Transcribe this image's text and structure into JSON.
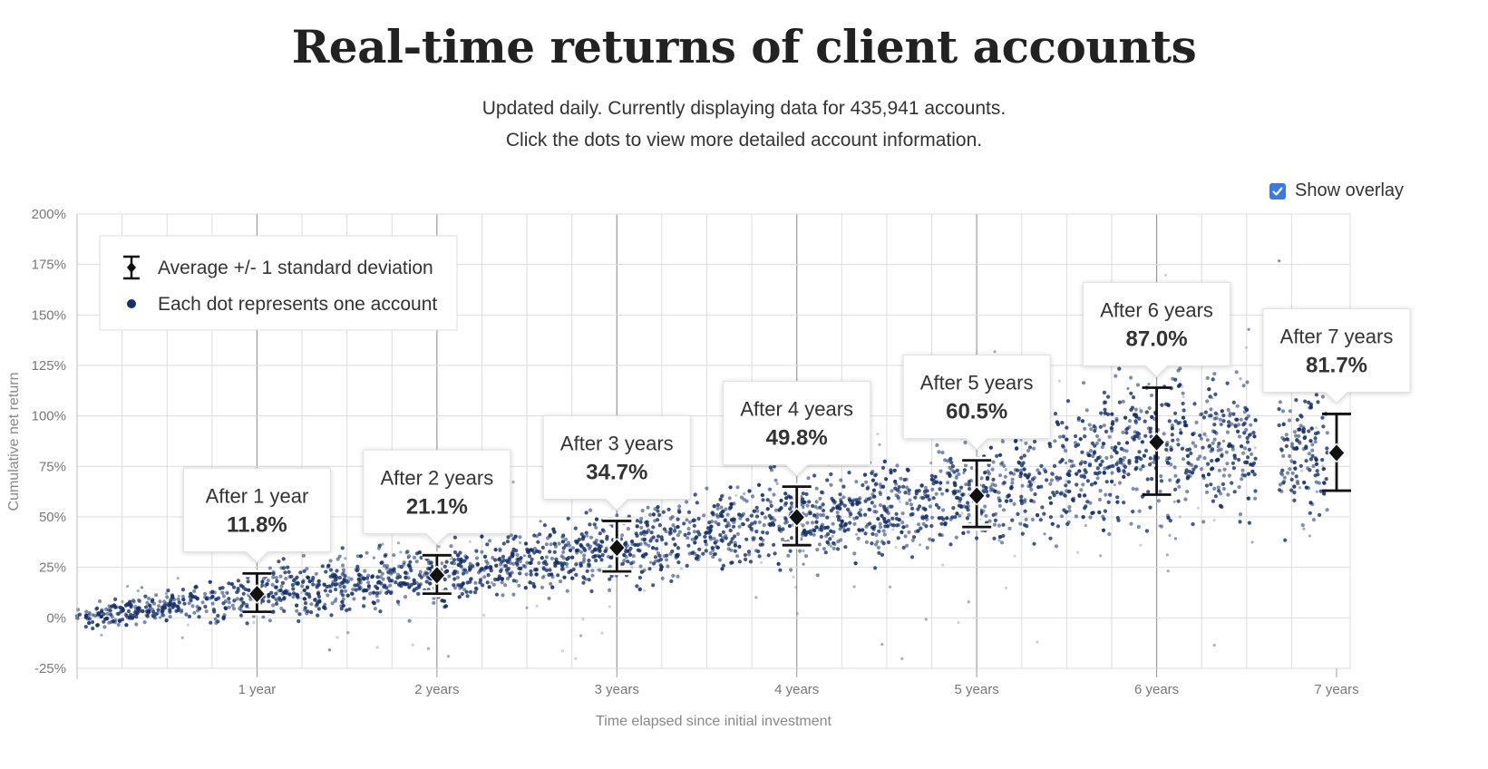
{
  "header": {
    "title": "Real-time returns of client accounts",
    "subtitle_line1": "Updated daily. Currently displaying data for 435,941 accounts.",
    "subtitle_line2": "Click the dots to view more detailed account information."
  },
  "overlay": {
    "label": "Show overlay",
    "checked": true,
    "color": "#3b7be0"
  },
  "legend": {
    "errorbar_label": "Average +/- 1 standard deviation",
    "dot_label": "Each dot represents one account"
  },
  "colors": {
    "dots": "#14306a",
    "marker": "#111111",
    "grid": "#dddddd",
    "grid_major": "#999999"
  },
  "chart_data": {
    "type": "scatter",
    "xlabel": "Time elapsed since initial investment",
    "ylabel": "Cumulative net return",
    "xlim": [
      0,
      7
    ],
    "ylim": [
      -25,
      200
    ],
    "x_ticks": [
      {
        "value": 1,
        "label": "1 year"
      },
      {
        "value": 2,
        "label": "2 years"
      },
      {
        "value": 3,
        "label": "3 years"
      },
      {
        "value": 4,
        "label": "4 years"
      },
      {
        "value": 5,
        "label": "5 years"
      },
      {
        "value": 6,
        "label": "6 years"
      },
      {
        "value": 7,
        "label": "7 years"
      }
    ],
    "y_ticks": [
      {
        "value": 200,
        "label": "200%"
      },
      {
        "value": 175,
        "label": "175%"
      },
      {
        "value": 150,
        "label": "150%"
      },
      {
        "value": 125,
        "label": "125%"
      },
      {
        "value": 100,
        "label": "100%"
      },
      {
        "value": 75,
        "label": "75%"
      },
      {
        "value": 50,
        "label": "50%"
      },
      {
        "value": 25,
        "label": "25%"
      },
      {
        "value": 0,
        "label": "0%"
      },
      {
        "value": -25,
        "label": "-25%"
      }
    ],
    "summary": [
      {
        "x": 1,
        "mean": 11.8,
        "low": 3,
        "high": 22,
        "label": "After 1 year",
        "value_label": "11.8%"
      },
      {
        "x": 2,
        "mean": 21.1,
        "low": 12,
        "high": 31,
        "label": "After 2 years",
        "value_label": "21.1%"
      },
      {
        "x": 3,
        "mean": 34.7,
        "low": 23,
        "high": 48,
        "label": "After 3 years",
        "value_label": "34.7%"
      },
      {
        "x": 4,
        "mean": 49.8,
        "low": 36,
        "high": 65,
        "label": "After 4 years",
        "value_label": "49.8%"
      },
      {
        "x": 5,
        "mean": 60.5,
        "low": 45,
        "high": 78,
        "label": "After 5 years",
        "value_label": "60.5%"
      },
      {
        "x": 6,
        "mean": 87.0,
        "low": 61,
        "high": 114,
        "label": "After 6 years",
        "value_label": "87.0%"
      },
      {
        "x": 7,
        "mean": 81.7,
        "low": 63,
        "high": 101,
        "label": "After 7 years",
        "value_label": "81.7%"
      }
    ],
    "point_count": 435941
  }
}
